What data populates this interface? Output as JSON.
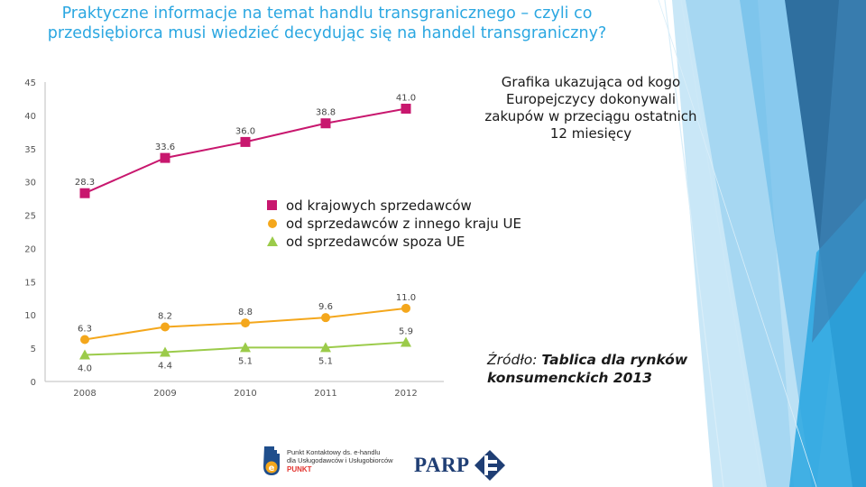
{
  "title_lines": [
    "Praktyczne informacje na temat handlu transgranicznego – czyli co",
    "przedsiębiorca musi wiedzieć decydując się na handel transgraniczny?"
  ],
  "caption_lines": [
    "Grafika ukazująca od kogo",
    "Europejczycy dokonywali",
    "zakupów w przeciągu ostatnich",
    "12 miesięcy"
  ],
  "source": {
    "label": "Źródło:",
    "text_line1": "Tablica dla rynków",
    "text_line2": "konsumenckich 2013"
  },
  "logos": {
    "punkt_lines": [
      "Punkt Kontaktowy ds. e-handlu",
      "dla Usługodawców i Usługobiorców"
    ],
    "punkt_name": "PUNKT",
    "parp": "PARP"
  },
  "colors": {
    "title": "#2ba7e1",
    "domestic": "#c8176e",
    "other_eu": "#f4a71c",
    "non_eu": "#9bcb4a"
  },
  "chart_data": {
    "type": "line",
    "x": [
      "2008",
      "2009",
      "2010",
      "2011",
      "2012"
    ],
    "ylim": [
      0,
      45
    ],
    "yticks": [
      0,
      5,
      10,
      15,
      20,
      25,
      30,
      35,
      40,
      45
    ],
    "grid": false,
    "legend_position": "center",
    "series": [
      {
        "name": "od krajowych sprzedawców",
        "marker": "square",
        "color": "#c8176e",
        "values": [
          28.3,
          33.6,
          36.0,
          38.8,
          41.0
        ],
        "labels": [
          "28.3",
          "33.6",
          "36.0",
          "38.8",
          "41.0"
        ]
      },
      {
        "name": "od sprzedawców z innego kraju UE",
        "marker": "circle",
        "color": "#f4a71c",
        "values": [
          6.3,
          8.2,
          8.8,
          9.6,
          11.0
        ],
        "labels": [
          "6.3",
          "8.2",
          "8.8",
          "9.6",
          "11.0"
        ]
      },
      {
        "name": "od sprzedawców spoza UE",
        "marker": "triangle",
        "color": "#9bcb4a",
        "values": [
          4.0,
          4.4,
          5.1,
          5.1,
          5.9
        ],
        "labels": [
          "4.0",
          "4.4",
          "5.1",
          "5.1",
          "5.9"
        ]
      }
    ]
  }
}
